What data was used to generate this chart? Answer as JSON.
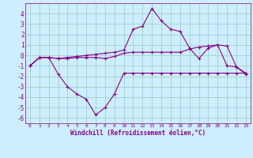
{
  "xlabel": "Windchill (Refroidissement éolien,°C)",
  "x": [
    0,
    1,
    2,
    3,
    4,
    5,
    6,
    7,
    8,
    9,
    10,
    11,
    12,
    13,
    14,
    15,
    16,
    17,
    18,
    19,
    20,
    21,
    22,
    23
  ],
  "line1": [
    -1,
    -0.2,
    -0.2,
    -0.3,
    -0.3,
    -0.2,
    -0.2,
    -0.2,
    -0.3,
    -0.1,
    0.2,
    0.3,
    0.3,
    0.3,
    0.3,
    0.3,
    0.3,
    0.6,
    0.8,
    0.9,
    1.0,
    0.9,
    -1.1,
    -1.7
  ],
  "line2": [
    -1,
    -0.2,
    -0.2,
    -1.8,
    -3.0,
    -3.7,
    -4.2,
    -5.7,
    -5.0,
    -3.7,
    -1.7,
    -1.7,
    -1.7,
    -1.7,
    -1.7,
    -1.7,
    -1.7,
    -1.7,
    -1.7,
    -1.7,
    -1.7,
    -1.7,
    -1.7,
    -1.7
  ],
  "line3": [
    -1,
    -0.2,
    -0.2,
    -0.3,
    -0.2,
    -0.1,
    0.0,
    0.1,
    0.2,
    0.3,
    0.5,
    2.5,
    2.8,
    4.5,
    3.3,
    2.5,
    2.3,
    0.7,
    -0.3,
    0.7,
    1.0,
    -1.0,
    -1.1,
    -1.8
  ],
  "color": "#880088",
  "bg_color": "#cceeff",
  "grid_color": "#99ccbb",
  "ylim": [
    -6.5,
    5.0
  ],
  "yticks": [
    -6,
    -5,
    -4,
    -3,
    -2,
    -1,
    0,
    1,
    2,
    3,
    4
  ],
  "xlim": [
    -0.5,
    23.5
  ],
  "marker": "+"
}
